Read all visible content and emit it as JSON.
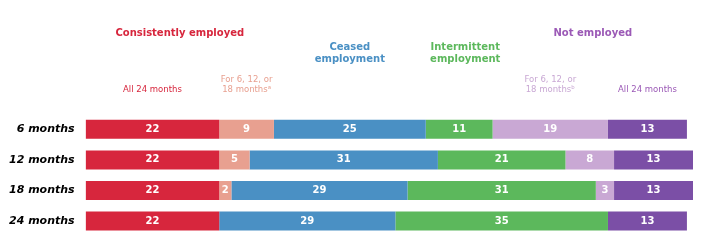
{
  "chart_data": {
    "type": "bar",
    "orientation": "horizontal",
    "stacked": true,
    "data_labels": true,
    "tick_labels": "y",
    "grid": false,
    "categories": [
      "6 months",
      "12 months",
      "18 months",
      "24 months"
    ],
    "xlim": [
      0,
      100
    ],
    "series": [
      {
        "color": "#d7263d",
        "values": [
          22,
          22,
          22,
          22
        ]
      },
      {
        "color": "#e8a090",
        "values": [
          9,
          5,
          2,
          0
        ]
      },
      {
        "color": "#4a90c4",
        "values": [
          25,
          31,
          29,
          29
        ]
      },
      {
        "color": "#5cb85c",
        "values": [
          11,
          21,
          31,
          35
        ]
      },
      {
        "color": "#c9a8d4",
        "values": [
          19,
          8,
          3,
          0
        ]
      },
      {
        "color": "#7b4fa6",
        "values": [
          13,
          13,
          13,
          13
        ]
      }
    ],
    "annotations": [
      {
        "type": "header",
        "text": "Consistently employed",
        "color": "#d7263d",
        "x": 15.5
      },
      {
        "type": "header",
        "text": "Ceased\nemployment",
        "color": "#4a90c4",
        "x": 43.5
      },
      {
        "type": "header",
        "text": "Intermittent\nemployment",
        "color": "#5cb85c",
        "x": 62.5
      },
      {
        "type": "header",
        "text": "Not employed",
        "color": "#9b59b6",
        "x": 83.5
      },
      {
        "type": "subheader",
        "text": "All 24 months",
        "color": "#d7263d",
        "x": 11.0
      },
      {
        "type": "subheader",
        "text": "For 6, 12, or\n18 monthsᵃ",
        "color": "#e8a090",
        "x": 26.5
      },
      {
        "type": "subheader",
        "text": "For 6, 12, or\n18 monthsᵇ",
        "color": "#c9a8d4",
        "x": 76.5
      },
      {
        "type": "subheader",
        "text": "All 24 months",
        "color": "#9b59b6",
        "x": 92.5
      }
    ]
  }
}
